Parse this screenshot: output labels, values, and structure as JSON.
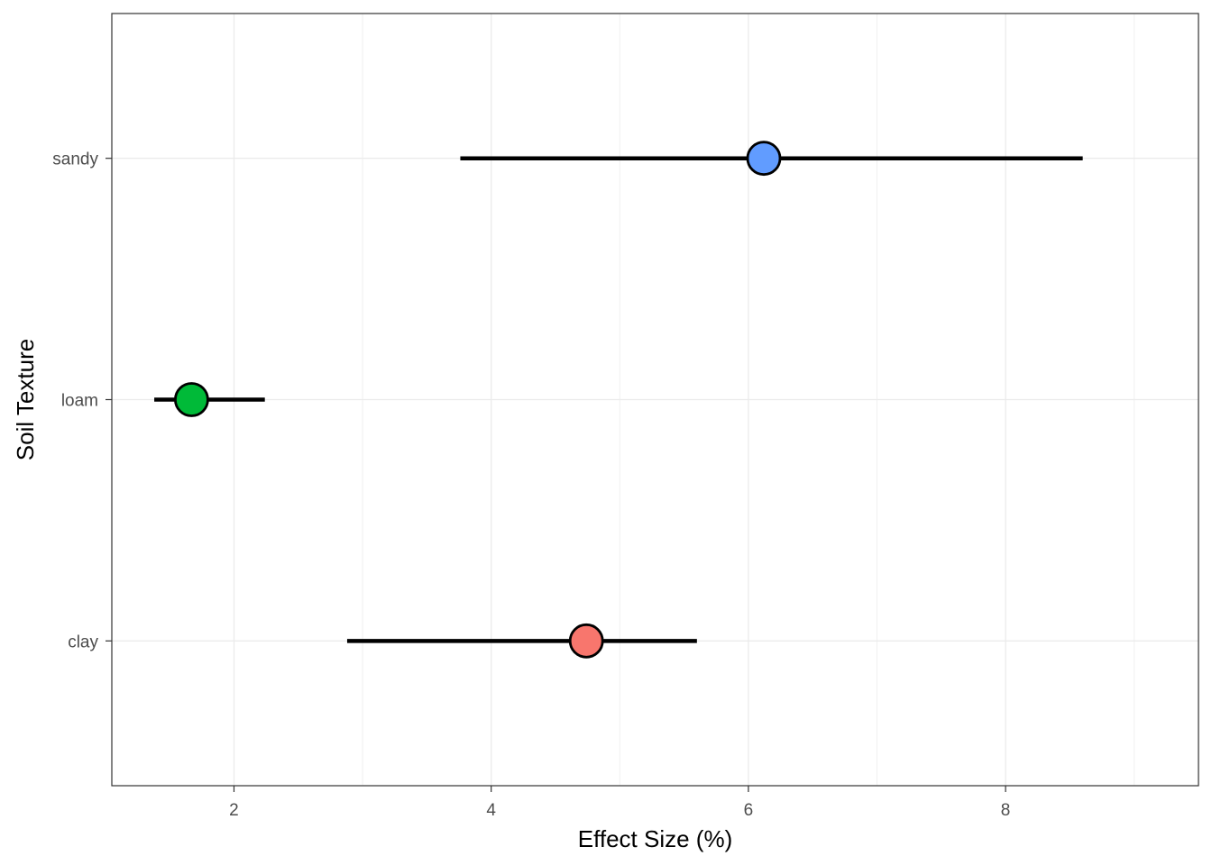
{
  "chart_data": {
    "type": "forest",
    "xlabel": "Effect Size (%)",
    "ylabel": "Soil Texture",
    "xlim": [
      1.05,
      9.5
    ],
    "x_ticks": [
      2,
      4,
      6,
      8
    ],
    "x_tick_labels": [
      "2",
      "4",
      "6",
      "8"
    ],
    "x_minor_ticks": [
      3,
      5,
      7,
      9
    ],
    "categories": [
      "clay",
      "loam",
      "sandy"
    ],
    "points": [
      {
        "category": "clay",
        "estimate": 4.74,
        "lower": 2.88,
        "upper": 5.6,
        "color": "#f8766d"
      },
      {
        "category": "loam",
        "estimate": 1.67,
        "lower": 1.38,
        "upper": 2.24,
        "color": "#00ba38"
      },
      {
        "category": "sandy",
        "estimate": 6.12,
        "lower": 3.76,
        "upper": 8.6,
        "color": "#619cff"
      }
    ],
    "grid": true,
    "legend": "none"
  }
}
